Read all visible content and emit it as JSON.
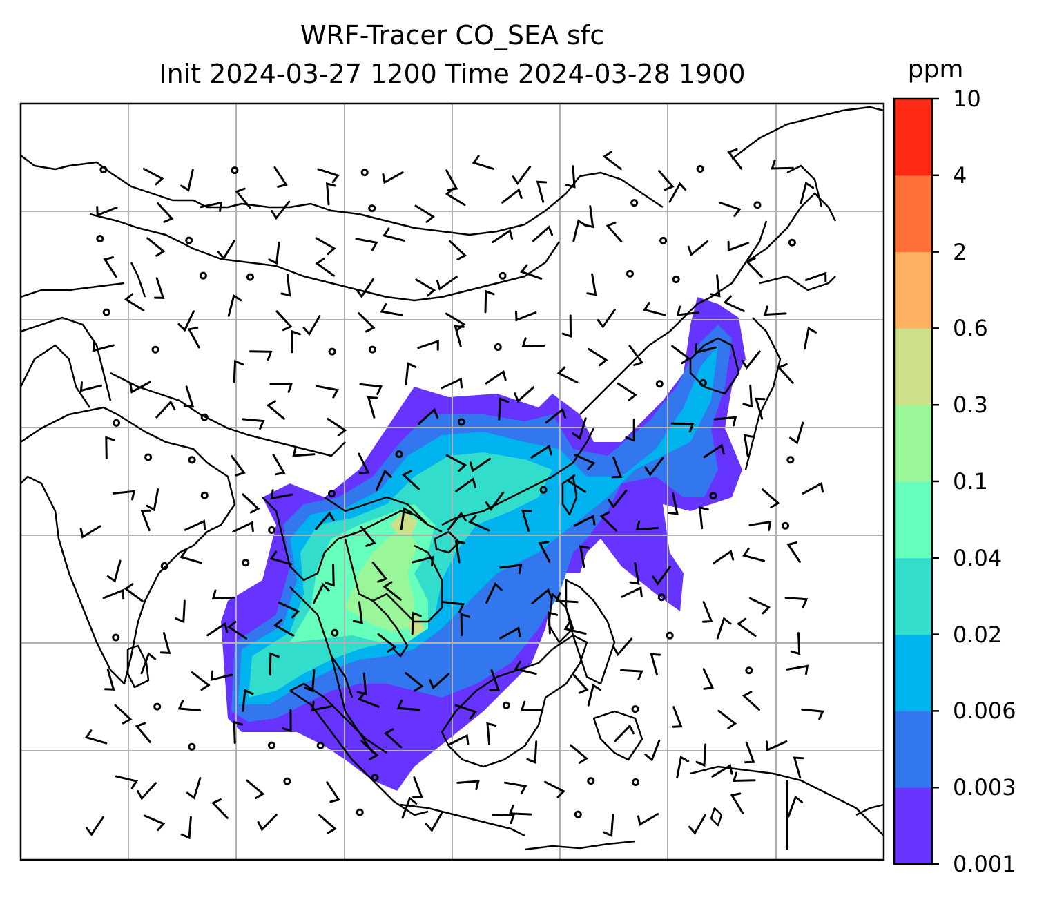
{
  "title": {
    "line1": "WRF-Tracer CO_SEA sfc",
    "line2": "Init 2024-03-27 1200 Time 2024-03-28 1900"
  },
  "colorbar": {
    "unit": "ppm",
    "levels": [
      "0.001",
      "0.003",
      "0.006",
      "0.02",
      "0.04",
      "0.1",
      "0.3",
      "0.6",
      "2",
      "4",
      "10"
    ],
    "colors": [
      "#6633ff",
      "#3377ee",
      "#00b2ee",
      "#33ddcc",
      "#66ffbb",
      "#99f799",
      "#cce08a",
      "#ffb060",
      "#ff703a",
      "#ff2a14"
    ]
  },
  "map": {
    "variable": "CO_SEA tracer surface concentration",
    "gridlines": true,
    "wind_symbols": "wind-barbs"
  }
}
